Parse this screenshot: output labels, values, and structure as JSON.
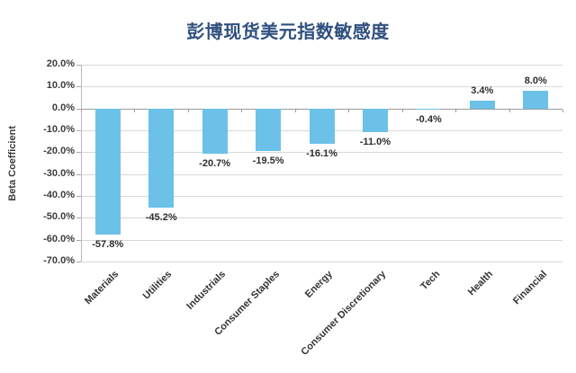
{
  "title": "彭博现货美元指数敏感度",
  "chart_data": {
    "type": "bar",
    "title": "彭博现货美元指数敏感度",
    "categories": [
      "Materials",
      "Utilities",
      "Industrials",
      "Consumer Staples",
      "Energy",
      "Consumer Discretionary",
      "Tech",
      "Health",
      "Financial"
    ],
    "values": [
      -57.8,
      -45.2,
      -20.7,
      -19.5,
      -16.1,
      -11.0,
      -0.4,
      3.4,
      8.0
    ],
    "value_labels": [
      "-57.8%",
      "-45.2%",
      "-20.7%",
      "-19.5%",
      "-16.1%",
      "-11.0%",
      "-0.4%",
      "3.4%",
      "8.0%"
    ],
    "xlabel": "",
    "ylabel": "Beta Coefficient",
    "ylim": [
      -70,
      20
    ],
    "ytick_step": 10,
    "ytick_labels": [
      "20.0%",
      "10.0%",
      "0.0%",
      "-10.0%",
      "-20.0%",
      "-30.0%",
      "-40.0%",
      "-50.0%",
      "-60.0%",
      "-70.0%"
    ],
    "grid": true,
    "legend_position": "none"
  },
  "colors": {
    "title": "#30507F",
    "bar": "#6CC1E8",
    "gridline": "#D8D8D8",
    "zero_line": "#9B9B9B",
    "axis_text": "#3C3C3C",
    "value_text": "#2E2E2E",
    "background": "#FFFFFF"
  }
}
